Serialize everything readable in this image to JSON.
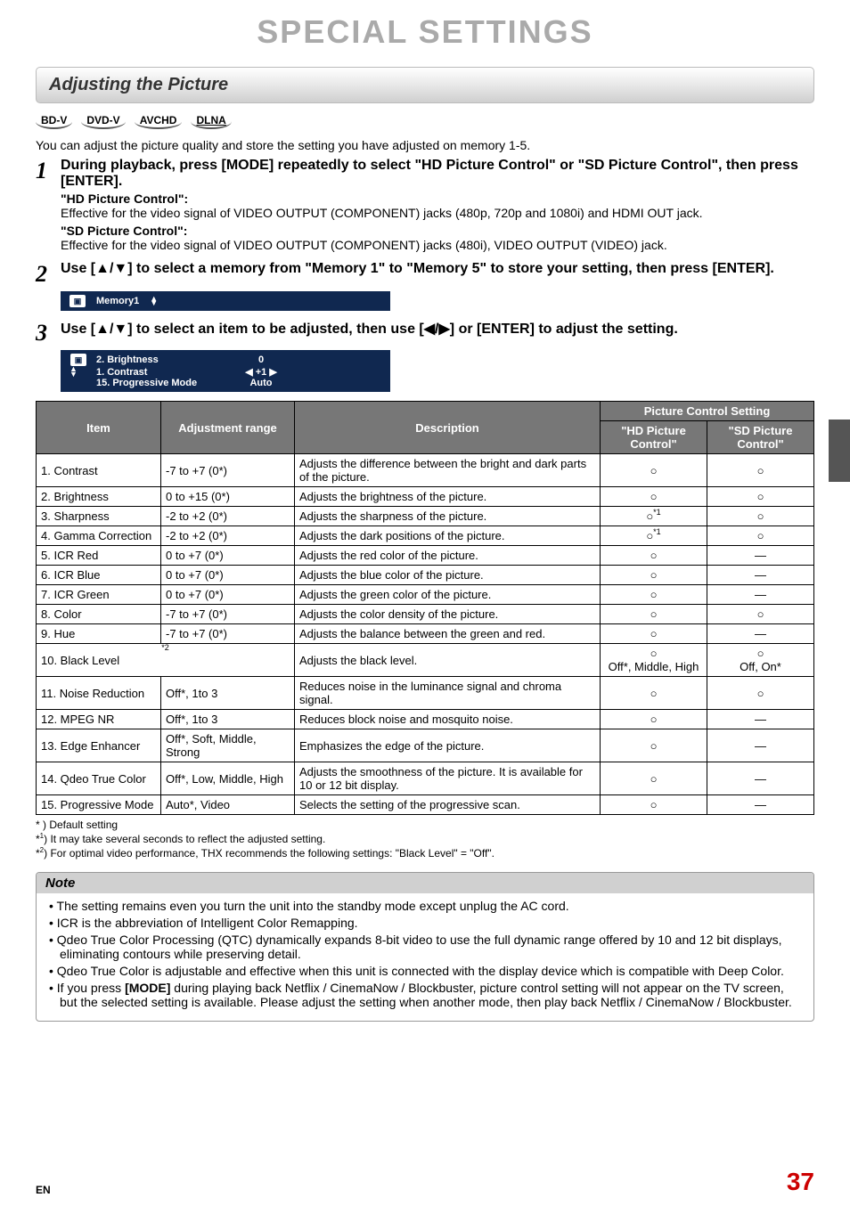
{
  "page": {
    "title": "SPECIAL SETTINGS",
    "lang_code": "EN",
    "page_number": "37"
  },
  "section": {
    "title": "Adjusting the Picture"
  },
  "format_badges": [
    "BD-V",
    "DVD-V",
    "AVCHD",
    "DLNA"
  ],
  "intro": "You can adjust the picture quality and store the setting you have adjusted on memory 1-5.",
  "steps": [
    {
      "num": "1",
      "title": "During playback, press [MODE] repeatedly to select \"HD Picture Control\" or \"SD Picture Control\", then press [ENTER].",
      "subs": [
        {
          "bold": "\"HD Picture Control\":",
          "text": "Effective for the video signal of VIDEO OUTPUT (COMPONENT) jacks (480p, 720p and 1080i) and HDMI OUT jack."
        },
        {
          "bold": "\"SD Picture Control\":",
          "text": "Effective for the video signal of VIDEO OUTPUT (COMPONENT) jacks (480i), VIDEO OUTPUT (VIDEO) jack."
        }
      ]
    },
    {
      "num": "2",
      "title": "Use [▲/▼] to select a memory  from \"Memory 1\" to \"Memory 5\" to store your setting, then press [ENTER].",
      "osd1": {
        "label": "Memory1"
      }
    },
    {
      "num": "3",
      "title": "Use [▲/▼] to select an item to be adjusted, then use [◀/▶] or [ENTER] to adjust the setting.",
      "osd2": {
        "l1": {
          "label": "2. Brightness",
          "val": "0"
        },
        "l2": {
          "label": "1. Contrast",
          "val": "+1"
        },
        "l3": {
          "label": "15. Progressive Mode",
          "val": "Auto"
        }
      }
    }
  ],
  "table": {
    "headers": {
      "item": "Item",
      "range": "Adjustment range",
      "desc": "Description",
      "pcs": "Picture Control Setting",
      "hd": "\"HD Picture Control\"",
      "sd": "\"SD Picture Control\""
    },
    "rows": [
      {
        "item": "1. Contrast",
        "range": "-7 to +7 (0*)",
        "desc": "Adjusts the difference between the bright and dark parts of the picture.",
        "hd": "○",
        "sd": "○"
      },
      {
        "item": "2. Brightness",
        "range": "0 to +15 (0*)",
        "desc": "Adjusts the brightness of the picture.",
        "hd": "○",
        "sd": "○"
      },
      {
        "item": "3. Sharpness",
        "range": "-2 to +2 (0*)",
        "desc": "Adjusts the sharpness of the picture.",
        "hd": "○*1",
        "sd": "○"
      },
      {
        "item": "4. Gamma Correction",
        "range": "-2 to +2 (0*)",
        "desc": "Adjusts the dark positions of the picture.",
        "hd": "○*1",
        "sd": "○"
      },
      {
        "item": "5. ICR Red",
        "range": "0 to +7 (0*)",
        "desc": "Adjusts the red color of the picture.",
        "hd": "○",
        "sd": "—"
      },
      {
        "item": "6. ICR Blue",
        "range": "0 to +7 (0*)",
        "desc": "Adjusts the blue color of the picture.",
        "hd": "○",
        "sd": "—"
      },
      {
        "item": "7. ICR Green",
        "range": "0 to +7 (0*)",
        "desc": "Adjusts the green color of the picture.",
        "hd": "○",
        "sd": "—"
      },
      {
        "item": "8. Color",
        "range": "-7 to +7 (0*)",
        "desc": "Adjusts the color density of the picture.",
        "hd": "○",
        "sd": "○"
      },
      {
        "item": "9. Hue",
        "range": "-7 to +7 (0*)",
        "desc": "Adjusts the balance between the green and red.",
        "hd": "○",
        "sd": "—"
      },
      {
        "item": "10. Black Level",
        "range": "",
        "desc": "Adjusts the black level.",
        "hd_top": "○",
        "hd_bot": "Off*, Middle, High",
        "sd_top": "○",
        "sd_bot": "Off, On*",
        "star2": "*2",
        "merge_range": true
      },
      {
        "item": "11. Noise Reduction",
        "range": "Off*, 1to 3",
        "desc": "Reduces noise in the luminance signal and chroma signal.",
        "hd": "○",
        "sd": "○"
      },
      {
        "item": "12. MPEG NR",
        "range": "Off*, 1to 3",
        "desc": "Reduces block noise and mosquito noise.",
        "hd": "○",
        "sd": "—"
      },
      {
        "item": "13. Edge Enhancer",
        "range": "Off*, Soft, Middle, Strong",
        "desc": "Emphasizes the edge of the picture.",
        "hd": "○",
        "sd": "—"
      },
      {
        "item": "14. Qdeo True Color",
        "range": "Off*, Low, Middle, High",
        "desc": "Adjusts the smoothness of the picture. It is available for 10 or 12 bit display.",
        "hd": "○",
        "sd": "—"
      },
      {
        "item": "15. Progressive Mode",
        "range": "Auto*, Video",
        "desc": "Selects the setting of the progressive scan.",
        "hd": "○",
        "sd": "—"
      }
    ]
  },
  "footnotes": {
    "f0": "* ) Default setting",
    "f1": "*1) It may take several seconds to reflect the adjusted setting.",
    "f2": "*2) For optimal video performance, THX recommends the following settings: \"Black Level\" = \"Off\"."
  },
  "note": {
    "title": "Note",
    "items": [
      "The setting remains even you turn the unit into the standby mode except unplug the AC cord.",
      "ICR is the abbreviation of Intelligent Color Remapping.",
      "Qdeo True Color Processing (QTC) dynamically expands 8-bit video to use the full dynamic range offered by 10 and 12 bit displays, eliminating contours while preserving detail.",
      "Qdeo True Color is adjustable and effective when this unit is connected with the display device which is compatible with Deep Color.",
      "If you press [MODE] during playing back Netflix / CinemaNow / Blockbuster, picture control setting will not appear on the TV screen, but the selected setting is available. Please adjust the setting when another mode, then play back Netflix / CinemaNow / Blockbuster."
    ]
  },
  "colors": {
    "title_gray": "#aaaaaa",
    "osd_bg": "#102850",
    "th_bg": "#777777",
    "page_num": "#cc0000",
    "side_tab": "#555555"
  }
}
